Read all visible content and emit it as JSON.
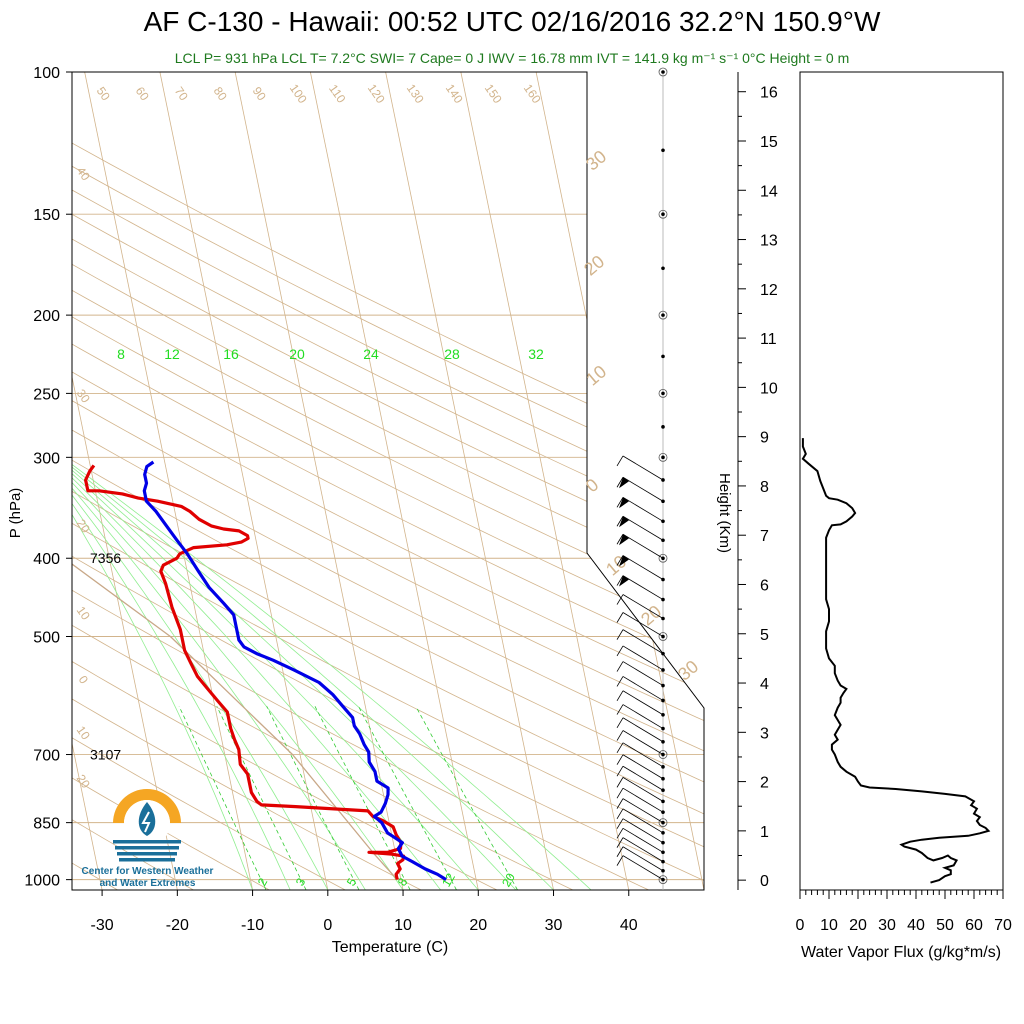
{
  "header": {
    "title": "AF C-130 - Hawaii: 00:52 UTC 02/16/2016  32.2°N 150.9°W",
    "subtitle": "LCL P= 931 hPa  LCL T= 7.2°C  SWI= 7  Cape= 0 J  IWV = 16.78 mm  IVT = 141.9 kg m⁻¹ s⁻¹  0°C Height = 0 m"
  },
  "logo": {
    "line1": "Center for Western Weather",
    "line2": "and Water Extremes",
    "colors": {
      "orange": "#f5a623",
      "blue": "#1a6f9a"
    }
  },
  "chart_data": [
    {
      "type": "line",
      "subtype": "skew-t log-p sounding",
      "xlabel": "Temperature (C)",
      "ylabel": "P (hPa)",
      "xlim": [
        -34,
        50
      ],
      "ylim": [
        1030,
        100
      ],
      "y_scale": "log",
      "xticks": [
        -30,
        -20,
        -10,
        0,
        10,
        20,
        30,
        40
      ],
      "yticks": [
        100,
        150,
        200,
        250,
        300,
        400,
        500,
        700,
        850,
        1000
      ],
      "height_annotations": [
        {
          "p": 400,
          "label": "7356"
        },
        {
          "p": 700,
          "label": "3107"
        }
      ],
      "dry_adiabat_labels": [
        "50",
        "60",
        "70",
        "80",
        "90",
        "100",
        "110",
        "120",
        "130",
        "140",
        "150",
        "160"
      ],
      "skewed_isotherm_labels_left": [
        "40",
        "30",
        "20",
        "10",
        "0",
        "10",
        "20"
      ],
      "skewed_isotherm_labels_right": [
        "30",
        "20",
        "10",
        "0",
        "10",
        "20",
        "30"
      ],
      "moist_adiabat_labels": [
        "8",
        "12",
        "16",
        "20",
        "24",
        "28",
        "32"
      ],
      "mixing_ratio_labels": [
        "2",
        "3",
        "5",
        "8",
        "12",
        "20"
      ],
      "colors": {
        "temperature": "#e00000",
        "dewpoint": "#0000e6",
        "grid_brown": "#d2b48c",
        "moist_green": "#90ee90",
        "label_green": "#22dd22",
        "parcel": "#c8a888"
      },
      "series": [
        {
          "name": "",
          "role": "temperature",
          "points": [
            [
              9.5,
              1000
            ],
            [
              9.5,
              985
            ],
            [
              10.2,
              970
            ],
            [
              10.0,
              955
            ],
            [
              10.8,
              945
            ],
            [
              11.0,
              935
            ],
            [
              9.5,
              930
            ],
            [
              6.5,
              925
            ],
            [
              9.0,
              925
            ],
            [
              10.8,
              915
            ],
            [
              11.0,
              900
            ],
            [
              10.6,
              880
            ],
            [
              10.4,
              860
            ],
            [
              9.2,
              845
            ],
            [
              8.0,
              835
            ],
            [
              7.5,
              822
            ],
            [
              -2.0,
              812
            ],
            [
              -6.5,
              808
            ],
            [
              -7.0,
              800
            ],
            [
              -7.5,
              780
            ],
            [
              -7.5,
              740
            ],
            [
              -8.2,
              720
            ],
            [
              -8.0,
              690
            ],
            [
              -8.3,
              670
            ],
            [
              -8.5,
              650
            ],
            [
              -8.5,
              620
            ],
            [
              -9.5,
              600
            ],
            [
              -10.5,
              580
            ],
            [
              -11.5,
              560
            ],
            [
              -12.0,
              540
            ],
            [
              -12.5,
              520
            ],
            [
              -12.5,
              490
            ],
            [
              -13.0,
              460
            ],
            [
              -13.2,
              430
            ],
            [
              -13.5,
              415
            ],
            [
              -13.0,
              408
            ],
            [
              -11.0,
              400
            ],
            [
              -10.5,
              395
            ],
            [
              -8.5,
              388
            ],
            [
              -4.0,
              385
            ],
            [
              -2.0,
              382
            ],
            [
              -1.0,
              378
            ],
            [
              -1.0,
              375
            ],
            [
              -2.0,
              370
            ],
            [
              -4.0,
              368
            ],
            [
              -5.5,
              365
            ],
            [
              -7.0,
              358
            ],
            [
              -8.0,
              350
            ],
            [
              -9.0,
              345
            ],
            [
              -12.0,
              340
            ],
            [
              -14.5,
              337
            ],
            [
              -16.5,
              333
            ],
            [
              -19.5,
              330
            ],
            [
              -21.0,
              330
            ],
            [
              -21.0,
              320
            ],
            [
              -20.2,
              312
            ],
            [
              -19.5,
              307
            ]
          ]
        },
        {
          "name": "",
          "role": "dewpoint",
          "points": [
            [
              16.0,
              1000
            ],
            [
              15.0,
              985
            ],
            [
              13.5,
              970
            ],
            [
              12.0,
              950
            ],
            [
              10.8,
              935
            ],
            [
              10.5,
              915
            ],
            [
              11.2,
              900
            ],
            [
              9.5,
              875
            ],
            [
              9.0,
              850
            ],
            [
              8.2,
              835
            ],
            [
              9.2,
              825
            ],
            [
              10.0,
              805
            ],
            [
              10.6,
              785
            ],
            [
              10.8,
              770
            ],
            [
              9.5,
              755
            ],
            [
              9.5,
              735
            ],
            [
              9.0,
              715
            ],
            [
              9.2,
              695
            ],
            [
              8.8,
              680
            ],
            [
              8.5,
              660
            ],
            [
              8.0,
              645
            ],
            [
              8.0,
              630
            ],
            [
              7.0,
              610
            ],
            [
              6.0,
              590
            ],
            [
              4.5,
              570
            ],
            [
              1.5,
              550
            ],
            [
              -1.0,
              535
            ],
            [
              -3.0,
              525
            ],
            [
              -4.5,
              515
            ],
            [
              -5.0,
              505
            ],
            [
              -5.0,
              490
            ],
            [
              -5.0,
              470
            ],
            [
              -6.0,
              455
            ],
            [
              -7.5,
              435
            ],
            [
              -8.5,
              415
            ],
            [
              -9.5,
              395
            ],
            [
              -10.5,
              380
            ],
            [
              -11.5,
              365
            ],
            [
              -12.5,
              350
            ],
            [
              -13.5,
              340
            ],
            [
              -13.5,
              330
            ],
            [
              -13.0,
              323
            ],
            [
              -13.0,
              315
            ],
            [
              -12.5,
              308
            ],
            [
              -11.5,
              304
            ]
          ]
        },
        {
          "name": "",
          "role": "parcel path",
          "points": [
            [
              9.5,
              1000
            ],
            [
              7.2,
              931
            ],
            [
              -1.0,
              700
            ],
            [
              -14.0,
              500
            ],
            [
              -26.0,
              400
            ],
            [
              -40.0,
              300
            ],
            [
              -48.0,
              230
            ],
            [
              -32.0,
              150
            ],
            [
              -16.0,
              100
            ]
          ]
        }
      ],
      "wind_barbs": {
        "p_levels": [
          1000,
          975,
          950,
          925,
          900,
          875,
          850,
          825,
          800,
          775,
          750,
          725,
          700,
          675,
          650,
          625,
          600,
          575,
          550,
          525,
          500,
          475,
          450,
          425,
          400,
          380,
          360,
          340,
          320
        ],
        "shape": "shafts extend up-left toward ~330°, flags at top of 450–350 hPa"
      },
      "barb_column_dots_p": [
        1000,
        975,
        950,
        925,
        900,
        875,
        850,
        825,
        800,
        775,
        750,
        725,
        700,
        675,
        650,
        625,
        600,
        575,
        550,
        525,
        500,
        475,
        450,
        425,
        400,
        380,
        360,
        340,
        320,
        300,
        275,
        250,
        225,
        200,
        175,
        150,
        125,
        100
      ]
    },
    {
      "type": "line",
      "xlabel": "Water Vapor Flux (g/kg*m/s)",
      "ylabel": "Height (Km)",
      "xlim": [
        0,
        70
      ],
      "ylim": [
        -0.2,
        16.4
      ],
      "xticks": [
        0,
        10,
        20,
        30,
        40,
        50,
        60,
        70
      ],
      "yticks": [
        0,
        1,
        2,
        3,
        4,
        5,
        6,
        7,
        8,
        9,
        10,
        11,
        12,
        13,
        14,
        15,
        16
      ],
      "series": [
        {
          "name": "",
          "points": [
            [
              45,
              -0.05
            ],
            [
              48,
              0.0
            ],
            [
              50,
              0.08
            ],
            [
              52,
              0.12
            ],
            [
              52,
              0.2
            ],
            [
              50,
              0.25
            ],
            [
              53,
              0.3
            ],
            [
              54,
              0.4
            ],
            [
              52,
              0.45
            ],
            [
              51,
              0.5
            ],
            [
              49,
              0.45
            ],
            [
              46,
              0.4
            ],
            [
              44,
              0.45
            ],
            [
              42,
              0.55
            ],
            [
              40,
              0.62
            ],
            [
              36,
              0.68
            ],
            [
              35,
              0.72
            ],
            [
              38,
              0.78
            ],
            [
              42,
              0.82
            ],
            [
              48,
              0.86
            ],
            [
              53,
              0.88
            ],
            [
              58,
              0.9
            ],
            [
              62,
              0.95
            ],
            [
              65,
              1.0
            ],
            [
              64,
              1.06
            ],
            [
              62,
              1.12
            ],
            [
              61,
              1.2
            ],
            [
              62,
              1.28
            ],
            [
              60,
              1.35
            ],
            [
              61,
              1.45
            ],
            [
              59,
              1.52
            ],
            [
              60,
              1.6
            ],
            [
              57,
              1.7
            ],
            [
              50,
              1.75
            ],
            [
              42,
              1.8
            ],
            [
              33,
              1.85
            ],
            [
              24,
              1.88
            ],
            [
              21,
              1.92
            ],
            [
              20,
              2.0
            ],
            [
              19,
              2.1
            ],
            [
              16,
              2.2
            ],
            [
              14,
              2.3
            ],
            [
              13,
              2.4
            ],
            [
              12,
              2.55
            ],
            [
              11,
              2.65
            ],
            [
              11,
              2.75
            ],
            [
              13,
              2.85
            ],
            [
              12,
              2.95
            ],
            [
              13,
              3.05
            ],
            [
              14,
              3.15
            ],
            [
              13,
              3.25
            ],
            [
              12,
              3.35
            ],
            [
              13,
              3.5
            ],
            [
              14,
              3.6
            ],
            [
              14,
              3.7
            ],
            [
              15,
              3.8
            ],
            [
              16,
              3.88
            ],
            [
              14,
              3.95
            ],
            [
              13,
              4.05
            ],
            [
              12,
              4.2
            ],
            [
              12,
              4.35
            ],
            [
              10,
              4.5
            ],
            [
              9,
              4.7
            ],
            [
              9,
              4.9
            ],
            [
              9,
              5.05
            ],
            [
              10,
              5.25
            ],
            [
              10,
              5.5
            ],
            [
              9,
              5.7
            ],
            [
              9,
              6.0
            ],
            [
              9,
              6.3
            ],
            [
              9,
              6.6
            ],
            [
              9,
              6.8
            ],
            [
              9,
              6.95
            ],
            [
              10,
              7.1
            ],
            [
              11,
              7.2
            ],
            [
              14,
              7.22
            ],
            [
              16,
              7.28
            ],
            [
              18,
              7.38
            ],
            [
              19,
              7.45
            ],
            [
              18,
              7.55
            ],
            [
              16,
              7.65
            ],
            [
              13,
              7.72
            ],
            [
              10,
              7.75
            ],
            [
              9,
              7.8
            ],
            [
              8,
              7.95
            ],
            [
              7,
              8.1
            ],
            [
              6,
              8.3
            ],
            [
              3,
              8.45
            ],
            [
              1,
              8.55
            ],
            [
              2,
              8.65
            ],
            [
              1,
              8.8
            ],
            [
              1,
              8.97
            ]
          ]
        }
      ]
    }
  ]
}
